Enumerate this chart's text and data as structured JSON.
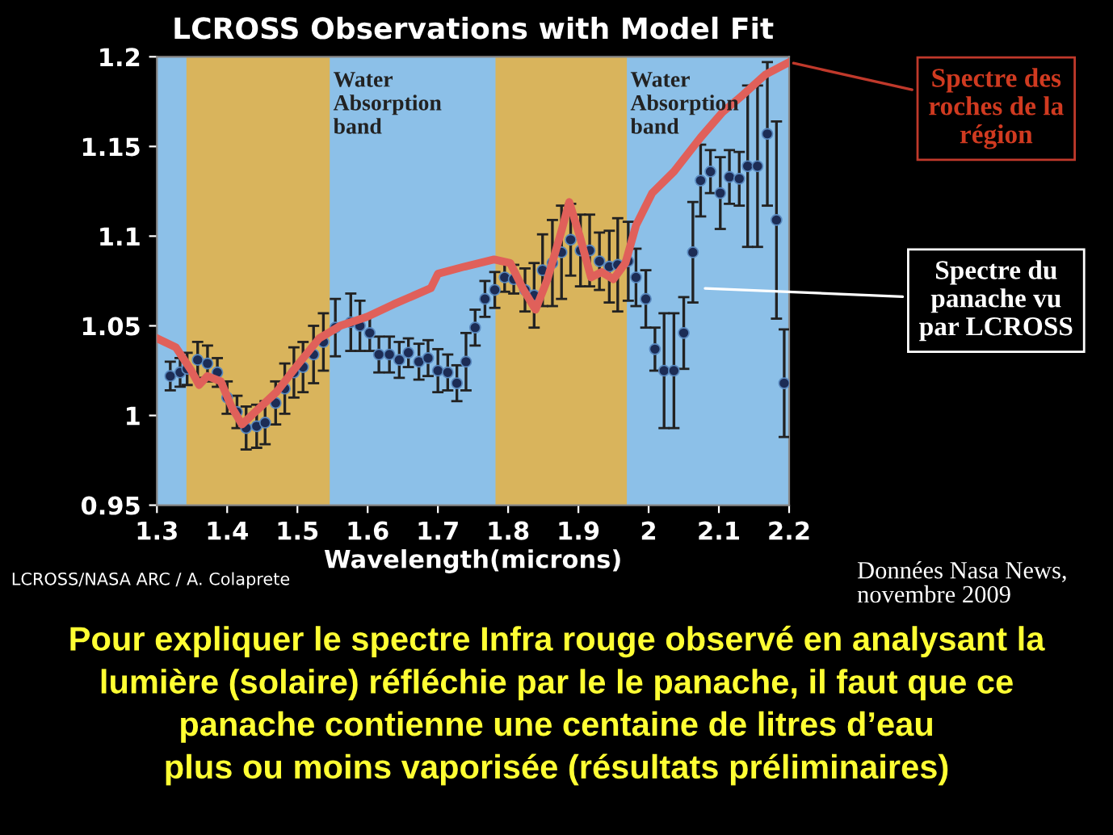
{
  "chart_data": {
    "type": "scatter",
    "title": "LCROSS Observations with Model Fit",
    "xlabel": "Wavelength(microns)",
    "xlim": [
      1.3,
      2.2
    ],
    "xticks": [
      1.3,
      1.4,
      1.5,
      1.6,
      1.7,
      1.8,
      1.9,
      2,
      2.1,
      2.2
    ],
    "ylim": [
      0.95,
      1.2
    ],
    "yticks": [
      0.95,
      1,
      1.05,
      1.1,
      1.15,
      1.2
    ],
    "grid": false,
    "legend": false,
    "bands": [
      {
        "axis": "x",
        "from": 1.342,
        "to": 1.546,
        "label": "Water\nAbsorption\nband",
        "color": "#d9b45c"
      },
      {
        "axis": "x",
        "from": 1.782,
        "to": 1.969,
        "label": "Water\nAbsorption\nband",
        "color": "#d9b45c"
      }
    ],
    "series": [
      {
        "type": "line",
        "color": "#e0605a",
        "marker": "none",
        "line_style": "solid",
        "x": [
          1.3,
          1.327,
          1.349,
          1.36,
          1.372,
          1.391,
          1.406,
          1.421,
          1.44,
          1.47,
          1.5,
          1.531,
          1.561,
          1.599,
          1.637,
          1.69,
          1.7,
          1.738,
          1.78,
          1.803,
          1.822,
          1.839,
          1.856,
          1.876,
          1.887,
          1.902,
          1.918,
          1.933,
          1.95,
          1.967,
          1.982,
          2.005,
          2.036,
          2.074,
          2.105,
          2.135,
          2.166,
          2.2
        ],
        "values": [
          1.043,
          1.038,
          1.025,
          1.017,
          1.022,
          1.019,
          1.005,
          0.995,
          1.002,
          1.013,
          1.028,
          1.043,
          1.05,
          1.055,
          1.062,
          1.071,
          1.079,
          1.083,
          1.087,
          1.085,
          1.07,
          1.059,
          1.076,
          1.103,
          1.119,
          1.1,
          1.077,
          1.08,
          1.076,
          1.085,
          1.106,
          1.124,
          1.136,
          1.155,
          1.169,
          1.179,
          1.19,
          1.197
        ]
      },
      {
        "color": "#1c2c55",
        "marker": "circle",
        "x": [
          1.319,
          1.333,
          1.343,
          1.358,
          1.372,
          1.386,
          1.4,
          1.414,
          1.427,
          1.442,
          1.454,
          1.469,
          1.482,
          1.495,
          1.508,
          1.523,
          1.537,
          1.554,
          1.576,
          1.589,
          1.603,
          1.616,
          1.631,
          1.645,
          1.658,
          1.673,
          1.686,
          1.7,
          1.714,
          1.727,
          1.74,
          1.753,
          1.767,
          1.781,
          1.795,
          1.808,
          1.824,
          1.837,
          1.849,
          1.863,
          1.876,
          1.889,
          1.903,
          1.916,
          1.93,
          1.944,
          1.956,
          1.971,
          1.982,
          1.996,
          2.009,
          2.022,
          2.036,
          2.05,
          2.063,
          2.074,
          2.088,
          2.102,
          2.115,
          2.129,
          2.141,
          2.155,
          2.169,
          2.182,
          2.193
        ],
        "values": [
          1.022,
          1.024,
          1.026,
          1.031,
          1.029,
          1.024,
          1.01,
          1.002,
          0.993,
          0.994,
          0.996,
          1.007,
          1.015,
          1.024,
          1.027,
          1.034,
          1.041,
          1.049,
          1.052,
          1.05,
          1.046,
          1.034,
          1.034,
          1.031,
          1.035,
          1.03,
          1.032,
          1.025,
          1.024,
          1.018,
          1.03,
          1.049,
          1.065,
          1.07,
          1.077,
          1.076,
          1.07,
          1.067,
          1.081,
          1.085,
          1.091,
          1.098,
          1.092,
          1.092,
          1.086,
          1.083,
          1.084,
          1.086,
          1.077,
          1.065,
          1.037,
          1.025,
          1.025,
          1.046,
          1.091,
          1.131,
          1.136,
          1.124,
          1.133,
          1.132,
          1.139,
          1.139,
          1.157,
          1.109,
          1.018
        ],
        "errors": [
          0.008,
          0.008,
          0.009,
          0.01,
          0.01,
          0.008,
          0.009,
          0.009,
          0.012,
          0.012,
          0.012,
          0.012,
          0.014,
          0.014,
          0.014,
          0.016,
          0.016,
          0.016,
          0.016,
          0.014,
          0.01,
          0.01,
          0.01,
          0.01,
          0.008,
          0.01,
          0.01,
          0.012,
          0.01,
          0.01,
          0.016,
          0.01,
          0.01,
          0.01,
          0.008,
          0.008,
          0.012,
          0.018,
          0.02,
          0.024,
          0.026,
          0.02,
          0.02,
          0.02,
          0.016,
          0.02,
          0.026,
          0.022,
          0.016,
          0.016,
          0.012,
          0.032,
          0.032,
          0.02,
          0.028,
          0.02,
          0.012,
          0.02,
          0.015,
          0.015,
          0.045,
          0.045,
          0.04,
          0.055,
          0.03
        ]
      }
    ],
    "annotations": [
      {
        "text": "Spectre des\nroches de la\nrégion",
        "x": 2.2,
        "y": 1.197
      },
      {
        "text": "Spectre du\npanache vu\npar LCROSS",
        "x": 2.074,
        "y": 1.071
      },
      "LCROSS/NASA ARC / A. Colaprete",
      "Données Nasa News,\nnovembre 2009",
      "Pour expliquer le spectre Infra rouge observé en analysant la\nlumière (solaire) réfléchie par le le panache, il faut que ce\npanache contienne une centaine de litres d’eau\nplus ou moins vaporisée (résultats préliminaires)"
    ]
  }
}
